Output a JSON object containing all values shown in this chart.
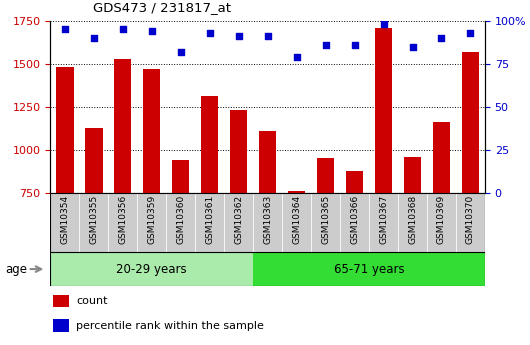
{
  "title": "GDS473 / 231817_at",
  "samples": [
    "GSM10354",
    "GSM10355",
    "GSM10356",
    "GSM10359",
    "GSM10360",
    "GSM10361",
    "GSM10362",
    "GSM10363",
    "GSM10364",
    "GSM10365",
    "GSM10366",
    "GSM10367",
    "GSM10368",
    "GSM10369",
    "GSM10370"
  ],
  "counts": [
    1480,
    1130,
    1530,
    1470,
    940,
    1315,
    1230,
    1110,
    760,
    955,
    880,
    1710,
    960,
    1165,
    1570
  ],
  "percentile_ranks": [
    95,
    90,
    95,
    94,
    82,
    93,
    91,
    91,
    79,
    86,
    86,
    98,
    85,
    90,
    93
  ],
  "ylim_left": [
    750,
    1750
  ],
  "ylim_right": [
    0,
    100
  ],
  "yticks_left": [
    750,
    1000,
    1250,
    1500,
    1750
  ],
  "yticks_right": [
    0,
    25,
    50,
    75,
    100
  ],
  "ytick_labels_right": [
    "0",
    "25",
    "50",
    "75",
    "100%"
  ],
  "group1_samples": 7,
  "group2_samples": 8,
  "group1_label": "20-29 years",
  "group2_label": "65-71 years",
  "age_label": "age",
  "bar_color": "#cc0000",
  "dot_color": "#0000cc",
  "group1_bg": "#aaeaaa",
  "group2_bg": "#33dd33",
  "tick_bg": "#cccccc",
  "xlabel_color_left": "#cc0000",
  "xlabel_color_right": "#0000cc",
  "legend_count_color": "#cc0000",
  "legend_pct_color": "#0000cc",
  "legend_count_label": "count",
  "legend_pct_label": "percentile rank within the sample"
}
